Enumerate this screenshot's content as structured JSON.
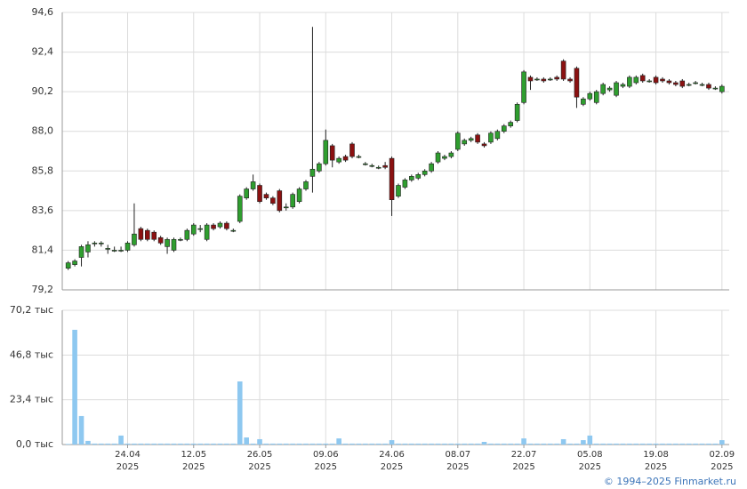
{
  "chart_data": [
    {
      "type": "candlestick",
      "open": [
        80.4,
        80.6,
        81.0,
        81.3,
        81.8,
        81.8,
        81.5,
        81.4,
        81.4,
        81.4,
        81.7,
        82.6,
        82.5,
        82.4,
        82.1,
        81.6,
        81.4,
        82.0,
        82.0,
        82.3,
        82.6,
        82.0,
        82.8,
        82.7,
        82.9,
        82.5,
        83.0,
        84.3,
        84.8,
        85.0,
        84.5,
        84.3,
        84.7,
        83.8,
        83.8,
        84.1,
        84.8,
        85.5,
        85.8,
        86.2,
        87.2,
        86.3,
        86.6,
        87.3,
        86.6,
        86.2,
        86.1,
        86.0,
        86.1,
        86.5,
        84.4,
        84.9,
        85.3,
        85.4,
        85.6,
        85.8,
        86.3,
        86.5,
        86.6,
        87.0,
        87.3,
        87.5,
        87.8,
        87.3,
        87.4,
        87.6,
        88.0,
        88.3,
        88.6,
        89.6,
        91.0,
        90.9,
        90.9,
        90.9,
        91.0,
        91.9,
        90.9,
        91.5,
        89.5,
        89.8,
        89.6,
        90.1,
        90.3,
        90.0,
        90.5,
        90.5,
        90.7,
        91.1,
        90.8,
        91.0,
        90.9,
        90.8,
        90.7,
        90.8,
        90.6,
        90.7,
        90.6,
        90.6,
        90.4,
        90.2
      ],
      "high": [
        80.8,
        80.9,
        81.7,
        81.9,
        81.9,
        81.9,
        81.7,
        81.6,
        81.6,
        81.9,
        84.0,
        82.7,
        82.6,
        82.5,
        82.2,
        82.1,
        82.1,
        82.1,
        82.6,
        82.9,
        82.8,
        82.9,
        82.9,
        83.0,
        83.0,
        82.6,
        84.5,
        84.9,
        85.6,
        85.1,
        84.6,
        84.4,
        84.8,
        84.0,
        84.6,
        84.9,
        85.3,
        93.8,
        86.3,
        88.1,
        87.3,
        86.6,
        86.7,
        87.4,
        86.7,
        86.3,
        86.2,
        86.1,
        86.3,
        86.6,
        85.1,
        85.4,
        85.6,
        85.7,
        85.9,
        86.3,
        86.9,
        86.7,
        86.9,
        88.0,
        87.6,
        87.7,
        87.9,
        87.4,
        88.0,
        88.1,
        88.4,
        88.6,
        89.6,
        91.4,
        91.1,
        91.0,
        91.0,
        91.0,
        91.1,
        92.0,
        91.0,
        91.6,
        89.9,
        90.2,
        90.3,
        90.7,
        90.5,
        90.8,
        90.7,
        91.1,
        91.1,
        91.2,
        90.9,
        91.1,
        91.0,
        90.9,
        90.8,
        90.9,
        90.7,
        90.8,
        90.7,
        90.7,
        90.5,
        90.6
      ],
      "low": [
        80.3,
        80.5,
        80.5,
        81.0,
        81.6,
        81.6,
        81.2,
        81.3,
        81.3,
        81.3,
        81.6,
        81.9,
        81.9,
        81.9,
        81.7,
        81.2,
        81.3,
        81.9,
        81.9,
        82.2,
        82.4,
        81.9,
        82.5,
        82.6,
        82.5,
        82.4,
        82.9,
        84.2,
        84.7,
        84.0,
        84.2,
        83.9,
        83.5,
        83.6,
        83.7,
        84.0,
        84.7,
        84.6,
        85.7,
        86.1,
        86.0,
        86.2,
        86.3,
        86.5,
        86.5,
        86.1,
        86.0,
        85.9,
        85.9,
        83.3,
        84.3,
        84.8,
        85.2,
        85.3,
        85.5,
        85.7,
        86.2,
        86.4,
        86.5,
        86.9,
        87.2,
        87.4,
        87.3,
        87.1,
        87.3,
        87.5,
        87.9,
        88.2,
        88.5,
        89.5,
        90.3,
        90.8,
        90.7,
        90.8,
        90.8,
        90.8,
        90.7,
        89.3,
        89.4,
        89.7,
        89.5,
        90.0,
        90.2,
        89.9,
        90.4,
        90.4,
        90.6,
        90.7,
        90.7,
        90.6,
        90.7,
        90.6,
        90.5,
        90.4,
        90.5,
        90.6,
        90.5,
        90.3,
        90.3,
        90.1
      ],
      "close": [
        80.7,
        80.8,
        81.6,
        81.7,
        81.8,
        81.8,
        81.5,
        81.4,
        81.4,
        81.8,
        82.3,
        82.0,
        82.0,
        82.0,
        81.8,
        82.0,
        82.0,
        82.0,
        82.5,
        82.8,
        82.6,
        82.8,
        82.6,
        82.9,
        82.6,
        82.5,
        84.4,
        84.8,
        85.2,
        84.1,
        84.3,
        84.0,
        83.6,
        83.8,
        84.5,
        84.8,
        85.2,
        85.9,
        86.2,
        87.5,
        86.4,
        86.5,
        86.4,
        86.6,
        86.6,
        86.2,
        86.1,
        86.0,
        86.0,
        84.2,
        85.0,
        85.3,
        85.5,
        85.6,
        85.8,
        86.2,
        86.8,
        86.6,
        86.8,
        87.9,
        87.5,
        87.6,
        87.4,
        87.2,
        87.9,
        88.0,
        88.3,
        88.5,
        89.5,
        91.3,
        90.8,
        90.9,
        90.8,
        90.9,
        90.9,
        90.9,
        90.8,
        89.9,
        89.8,
        90.1,
        90.2,
        90.6,
        90.4,
        90.7,
        90.6,
        91.0,
        91.0,
        90.8,
        90.8,
        90.7,
        90.8,
        90.7,
        90.6,
        90.5,
        90.6,
        90.7,
        90.6,
        90.4,
        90.4,
        90.5
      ],
      "up_color": "#2f9e2f",
      "down_color": "#8b1111",
      "ylim": [
        79.2,
        94.6
      ],
      "yticks": [
        {
          "value": 79.2,
          "label": "79,2"
        },
        {
          "value": 81.4,
          "label": "81,4"
        },
        {
          "value": 83.6,
          "label": "83,6"
        },
        {
          "value": 85.8,
          "label": "85,8"
        },
        {
          "value": 88.0,
          "label": "88,0"
        },
        {
          "value": 90.2,
          "label": "90,2"
        },
        {
          "value": 92.4,
          "label": "92,4"
        },
        {
          "value": 94.6,
          "label": "94,6"
        }
      ],
      "grid": true
    },
    {
      "type": "bar",
      "categories": [
        null,
        null,
        null,
        null,
        null,
        null,
        null,
        null,
        null,
        "24.04\n2025",
        null,
        null,
        null,
        null,
        null,
        null,
        null,
        null,
        null,
        "12.05\n2025",
        null,
        null,
        null,
        null,
        null,
        null,
        null,
        null,
        null,
        "26.05\n2025",
        null,
        null,
        null,
        null,
        null,
        null,
        null,
        null,
        null,
        "09.06\n2025",
        null,
        null,
        null,
        null,
        null,
        null,
        null,
        null,
        null,
        "24.06\n2025",
        null,
        null,
        null,
        null,
        null,
        null,
        null,
        null,
        null,
        "08.07\n2025",
        null,
        null,
        null,
        null,
        null,
        null,
        null,
        null,
        null,
        "22.07\n2025",
        null,
        null,
        null,
        null,
        null,
        null,
        null,
        null,
        null,
        "05.08\n2025",
        null,
        null,
        null,
        null,
        null,
        null,
        null,
        null,
        null,
        "19.08\n2025",
        null,
        null,
        null,
        null,
        null,
        null,
        null,
        null,
        null,
        "02.09\n2025"
      ],
      "values": [
        0.3,
        60,
        14.9,
        1.9,
        0.5,
        0.5,
        0.5,
        0.5,
        4.7,
        0.5,
        0.5,
        0.5,
        0.5,
        0.5,
        0.5,
        0.5,
        0.5,
        0.5,
        0.5,
        0.5,
        0.5,
        0.5,
        0.5,
        0.5,
        0.5,
        0.5,
        33,
        3.7,
        0.5,
        2.8,
        0.5,
        0.5,
        0.5,
        0.5,
        0.5,
        0.5,
        0.5,
        0.5,
        0.5,
        0.5,
        0.5,
        3.2,
        0.5,
        0.5,
        0.5,
        0.5,
        0.5,
        0.5,
        0.5,
        2.3,
        0.5,
        0.5,
        0.5,
        0.5,
        0.5,
        0.5,
        0.5,
        0.5,
        0.5,
        0.5,
        0.5,
        0.5,
        0.5,
        1.4,
        0.5,
        0.5,
        0.5,
        0.5,
        0.5,
        3.2,
        0.5,
        0.5,
        0.5,
        0.5,
        0.5,
        2.8,
        0.5,
        0.5,
        2.3,
        4.7,
        0.5,
        0.5,
        0.5,
        0.5,
        0.5,
        0.5,
        0.5,
        0.5,
        0.5,
        0.5,
        0.5,
        0.5,
        0.5,
        0.5,
        0.5,
        0.5,
        0.5,
        0.5,
        0.5,
        2.3
      ],
      "color": "#8ec8f0",
      "ylim": [
        0,
        70.2
      ],
      "yticks": [
        {
          "value": 0,
          "label": "0,0 тыс"
        },
        {
          "value": 23.4,
          "label": "23,4 тыс"
        },
        {
          "value": 46.8,
          "label": "46,8 тыс"
        },
        {
          "value": 70.2,
          "label": "70,2 тыс"
        }
      ],
      "grid": true
    }
  ],
  "credit": "© 1994–2025 Finmarket.ru"
}
